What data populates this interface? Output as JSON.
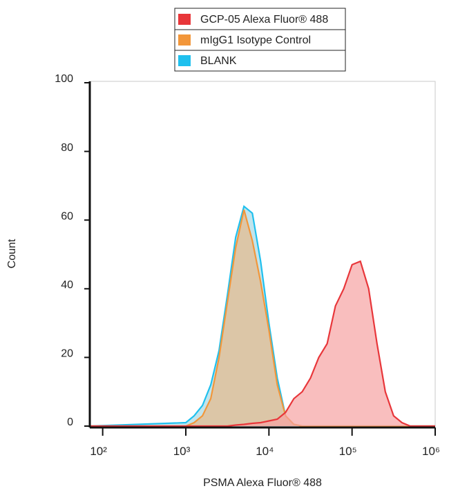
{
  "chart_data": {
    "type": "histogram-overlay",
    "xlabel": "PSMA Alexa Fluor® 488",
    "ylabel": "Count",
    "xscale": "log",
    "xlim": [
      70,
      1000000
    ],
    "ylim": [
      0,
      100
    ],
    "xticks": [
      {
        "value": 100,
        "label": "10²"
      },
      {
        "value": 1000,
        "label": "10³"
      },
      {
        "value": 10000,
        "label": "10⁴"
      },
      {
        "value": 100000,
        "label": "10⁵"
      },
      {
        "value": 1000000,
        "label": "10⁶"
      }
    ],
    "yticks": [
      0,
      20,
      40,
      60,
      80,
      100
    ],
    "legend": "top",
    "x": [
      70,
      1000,
      1259,
      1585,
      1995,
      2512,
      3162,
      3981,
      5012,
      6310,
      7943,
      10000,
      12589,
      15849,
      19953,
      25119,
      31623,
      39811,
      50119,
      63096,
      79433,
      100000,
      125893,
      158489,
      199526,
      251189,
      316228,
      398107,
      501187,
      630957,
      794328,
      1000000
    ],
    "series": [
      {
        "name": "GCP-05 Alexa Fluor® 488",
        "color": "#e8363a",
        "fill": "#f7a3a3",
        "values": [
          0,
          0,
          0,
          0,
          0,
          0,
          0,
          0.3,
          0.5,
          0.8,
          1,
          1.5,
          2,
          4,
          8,
          10,
          14,
          20,
          24,
          35,
          40,
          47,
          48,
          40,
          24,
          10,
          3,
          1,
          0,
          0,
          0,
          0
        ]
      },
      {
        "name": "mIgG1 Isotype Control",
        "color": "#f2963a",
        "fill": "#e7b98a",
        "values": [
          0,
          0,
          1,
          3,
          8,
          20,
          36,
          52,
          63,
          54,
          42,
          28,
          12,
          3,
          0.5,
          0,
          0,
          0,
          0,
          0,
          0,
          0,
          0,
          0,
          0,
          0,
          0,
          0,
          0,
          0,
          0,
          0
        ]
      },
      {
        "name": "BLANK",
        "color": "#1fc0ee",
        "fill": "#a6d9e4",
        "values": [
          0,
          1,
          3,
          6,
          12,
          22,
          38,
          55,
          64,
          62,
          48,
          30,
          14,
          3,
          0.5,
          0,
          0,
          0,
          0,
          0,
          0,
          0,
          0,
          0,
          0,
          0,
          0,
          0,
          0,
          0,
          0,
          0
        ]
      }
    ]
  }
}
